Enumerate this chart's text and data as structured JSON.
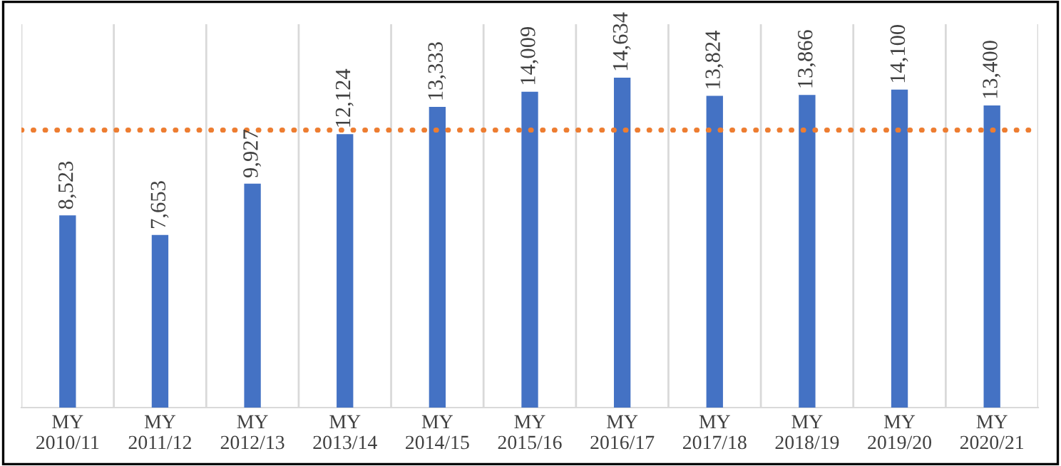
{
  "chart_data": {
    "type": "bar",
    "categories": [
      "MY\n2010/11",
      "MY\n2011/12",
      "MY\n2012/13",
      "MY\n2013/14",
      "MY\n2014/15",
      "MY\n2015/16",
      "MY\n2016/17",
      "MY\n2017/18",
      "MY\n2018/19",
      "MY\n2019/20",
      "MY\n2020/21"
    ],
    "values": [
      8523,
      7653,
      9927,
      12124,
      13333,
      14009,
      14634,
      13824,
      13866,
      14100,
      13400
    ],
    "value_labels": [
      "8,523",
      "7,653",
      "9,927",
      "12,124",
      "13,333",
      "14,009",
      "14,634",
      "13,824",
      "13,866",
      "14,100",
      "13,400"
    ],
    "color": "#4472c4",
    "ylim": [
      0,
      17000
    ],
    "ref_lines": [
      {
        "axis": "y",
        "value": 12308,
        "label": null,
        "color": "#ed7d31",
        "line_style": "dotted"
      }
    ],
    "grid": "x",
    "tick_labels": "x"
  }
}
